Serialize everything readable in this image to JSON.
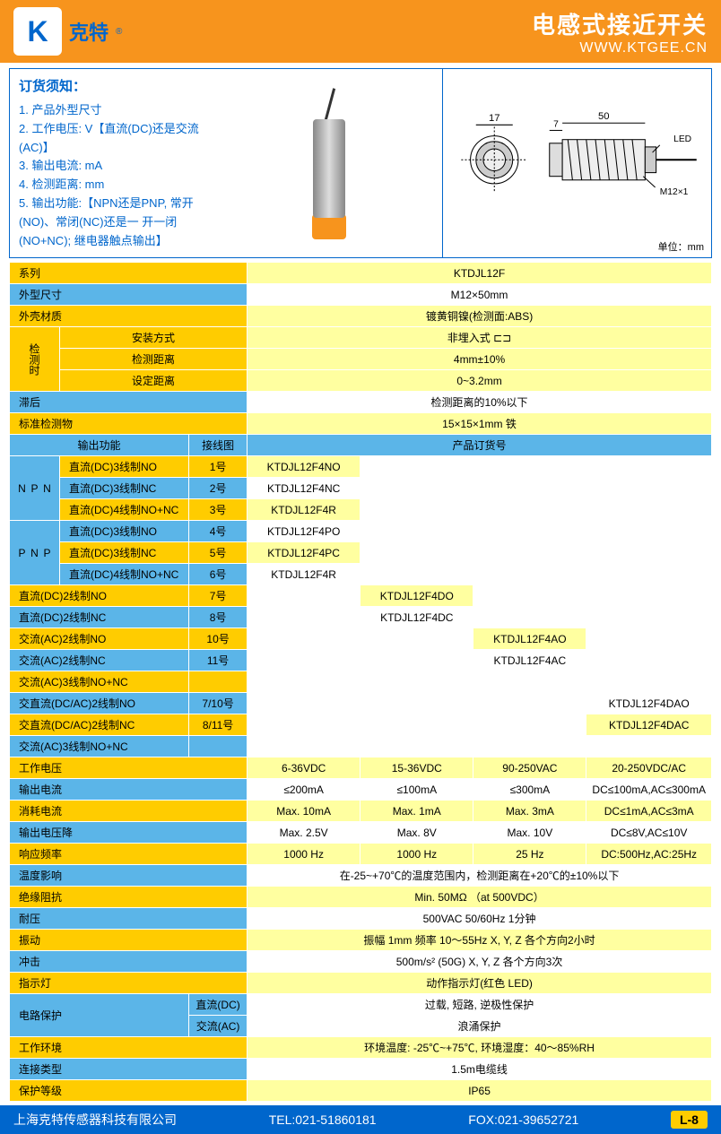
{
  "header": {
    "brand": "克特",
    "logo_mark": "K",
    "title": "电感式接近开关",
    "url": "WWW.KTGEE.CN"
  },
  "order_info": {
    "title": "订货须知：",
    "items": [
      "1. 产品外型尺寸",
      "2. 工作电压: V【直流(DC)还是交流(AC)】",
      "3. 输出电流: mA",
      "4. 检测距离: mm",
      "5. 输出功能:【NPN还是PNP, 常开(NO)、常闭(NC)还是一 开一闭(NO+NC); 继电器触点输出】"
    ]
  },
  "dimensions": {
    "d17": "17",
    "d50": "50",
    "d7": "7",
    "led": "LED",
    "thread": "M12×1",
    "unit": "单位：mm"
  },
  "basic": {
    "series_label": "系列",
    "series_value": "KTDJL12F",
    "size_label": "外型尺寸",
    "size_value": "M12×50mm",
    "material_label": "外壳材质",
    "material_value": "镀黄铜镍(检测面:ABS)"
  },
  "detection": {
    "vert_label": "检测时",
    "mount_label": "安装方式",
    "mount_value": "非埋入式 ⊏⊐",
    "dist_label": "检测距离",
    "dist_value": "4mm±10%",
    "set_label": "设定距离",
    "set_value": "0~3.2mm",
    "hyst_label": "滞后",
    "hyst_value": "检测距离的10%以下",
    "target_label": "标准检测物",
    "target_value": "15×15×1mm 铁"
  },
  "output_header": {
    "func_label": "输出功能",
    "wire_label": "接线图",
    "order_label": "产品订货号"
  },
  "models": [
    {
      "group": "NPN",
      "desc": "直流(DC)3线制NO",
      "wire": "1号",
      "codes": [
        "KTDJL12F4NO",
        "",
        "",
        ""
      ]
    },
    {
      "group": "NPN",
      "desc": "直流(DC)3线制NC",
      "wire": "2号",
      "codes": [
        "KTDJL12F4NC",
        "",
        "",
        ""
      ]
    },
    {
      "group": "NPN",
      "desc": "直流(DC)4线制NO+NC",
      "wire": "3号",
      "codes": [
        "KTDJL12F4R",
        "",
        "",
        ""
      ]
    },
    {
      "group": "PNP",
      "desc": "直流(DC)3线制NO",
      "wire": "4号",
      "codes": [
        "KTDJL12F4PO",
        "",
        "",
        ""
      ]
    },
    {
      "group": "PNP",
      "desc": "直流(DC)3线制NC",
      "wire": "5号",
      "codes": [
        "KTDJL12F4PC",
        "",
        "",
        ""
      ]
    },
    {
      "group": "PNP",
      "desc": "直流(DC)4线制NO+NC",
      "wire": "6号",
      "codes": [
        "KTDJL12F4R",
        "",
        "",
        ""
      ]
    },
    {
      "group": "",
      "desc": "直流(DC)2线制NO",
      "wire": "7号",
      "codes": [
        "",
        "KTDJL12F4DO",
        "",
        ""
      ]
    },
    {
      "group": "",
      "desc": "直流(DC)2线制NC",
      "wire": "8号",
      "codes": [
        "",
        "KTDJL12F4DC",
        "",
        ""
      ]
    },
    {
      "group": "",
      "desc": "交流(AC)2线制NO",
      "wire": "10号",
      "codes": [
        "",
        "",
        "KTDJL12F4AO",
        ""
      ]
    },
    {
      "group": "",
      "desc": "交流(AC)2线制NC",
      "wire": "11号",
      "codes": [
        "",
        "",
        "KTDJL12F4AC",
        ""
      ]
    },
    {
      "group": "",
      "desc": "交流(AC)3线制NO+NC",
      "wire": "",
      "codes": [
        "",
        "",
        "",
        ""
      ]
    },
    {
      "group": "",
      "desc": "交直流(DC/AC)2线制NO",
      "wire": "7/10号",
      "codes": [
        "",
        "",
        "",
        "KTDJL12F4DAO"
      ]
    },
    {
      "group": "",
      "desc": "交直流(DC/AC)2线制NC",
      "wire": "8/11号",
      "codes": [
        "",
        "",
        "",
        "KTDJL12F4DAC"
      ]
    },
    {
      "group": "",
      "desc": "交流(AC)3线制NO+NC",
      "wire": "",
      "codes": [
        "",
        "",
        "",
        ""
      ]
    }
  ],
  "elec": [
    {
      "label": "工作电压",
      "vals": [
        "6-36VDC",
        "15-36VDC",
        "90-250VAC",
        "20-250VDC/AC"
      ],
      "bg": "yellow"
    },
    {
      "label": "输出电流",
      "vals": [
        "≤200mA",
        "≤100mA",
        "≤300mA",
        "DC≤100mA,AC≤300mA"
      ],
      "bg": "blue"
    },
    {
      "label": "消耗电流",
      "vals": [
        "Max. 10mA",
        "Max. 1mA",
        "Max. 3mA",
        "DC≤1mA,AC≤3mA"
      ],
      "bg": "yellow"
    },
    {
      "label": "输出电压降",
      "vals": [
        "Max. 2.5V",
        "Max. 8V",
        "Max. 10V",
        "DC≤8V,AC≤10V"
      ],
      "bg": "blue"
    },
    {
      "label": "响应频率",
      "vals": [
        "1000 Hz",
        "1000 Hz",
        "25 Hz",
        "DC:500Hz,AC:25Hz"
      ],
      "bg": "yellow"
    }
  ],
  "env": [
    {
      "label": "温度影响",
      "value": "在-25~+70℃的温度范围内，检测距离在+20℃的±10%以下",
      "bg": "blue"
    },
    {
      "label": "绝缘阻抗",
      "value": "Min. 50MΩ （at 500VDC）",
      "bg": "yellow"
    },
    {
      "label": "耐压",
      "value": "500VAC 50/60Hz 1分钟",
      "bg": "blue"
    },
    {
      "label": "振动",
      "value": "振幅 1mm 频率 10～55Hz X, Y, Z 各个方向2小时",
      "bg": "yellow"
    },
    {
      "label": "冲击",
      "value": "500m/s² (50G)  X, Y, Z 各个方向3次",
      "bg": "blue"
    },
    {
      "label": "指示灯",
      "value": "动作指示灯(红色 LED)",
      "bg": "yellow"
    }
  ],
  "protection": {
    "label": "电路保护",
    "dc_label": "直流(DC)",
    "dc_value": "过载, 短路, 逆极性保护",
    "ac_label": "交流(AC)",
    "ac_value": "浪涌保护"
  },
  "env2": [
    {
      "label": "工作环境",
      "value": "环境温度: -25℃~+75℃, 环境湿度：40～85%RH",
      "bg": "yellow"
    },
    {
      "label": "连接类型",
      "value": "1.5m电缆线",
      "bg": "blue"
    },
    {
      "label": "保护等级",
      "value": "IP65",
      "bg": "yellow"
    }
  ],
  "footer": {
    "company": "上海克特传感器科技有限公司",
    "tel": "TEL:021-51860181",
    "fax": "FOX:021-39652721",
    "page": "L-8"
  },
  "colors": {
    "orange": "#f7941d",
    "blue": "#0066cc",
    "yellow": "#ffcc00",
    "lyellow": "#ffffa0",
    "lblue": "#5bb5e8"
  }
}
